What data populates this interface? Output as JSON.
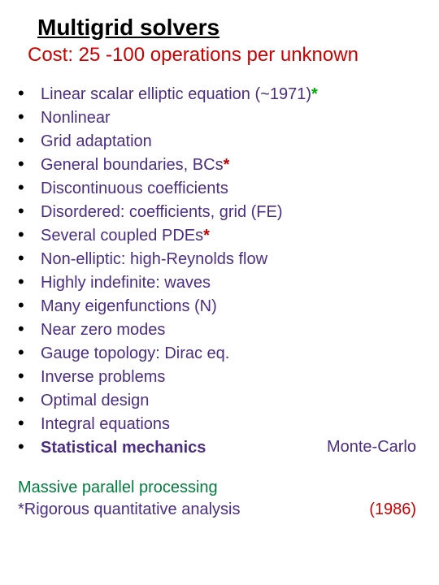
{
  "colors": {
    "title": "#000000",
    "subtitle": "#cc0000",
    "bullet": "#000000",
    "item": "#4b2e83",
    "suffix_green": "#00aa00",
    "suffix_red": "#cc0000",
    "trail": "#4b2e83",
    "footer1": "#007d3c",
    "footer2a": "#4b2e83",
    "footer2b": "#cc0000"
  },
  "title": "Multigrid solvers",
  "subtitle": "Cost: 25 -100 operations per unknown",
  "items": [
    {
      "text": "Linear scalar elliptic equation (~1971)",
      "suffix": "*",
      "suffix_color": "#00aa00",
      "bold": false
    },
    {
      "text": "Nonlinear",
      "bold": false
    },
    {
      "text": "Grid adaptation",
      "bold": false
    },
    {
      "text": "General boundaries, BCs",
      "suffix": "*",
      "suffix_color": "#cc0000",
      "bold": false
    },
    {
      "text": "Discontinuous coefficients",
      "bold": false
    },
    {
      "text": "Disordered: coefficients, grid (FE)",
      "bold": false
    },
    {
      "text": "Several coupled PDEs",
      "suffix": "*",
      "suffix_color": "#cc0000",
      "bold": false
    },
    {
      "text": "Non-elliptic: high-Reynolds flow",
      "bold": false
    },
    {
      "text": "Highly indefinite: waves",
      "bold": false
    },
    {
      "text": "Many eigenfunctions (N)",
      "bold": false
    },
    {
      "text": "Near zero modes",
      "bold": false
    },
    {
      "text": "Gauge topology: Dirac eq.",
      "bold": false
    },
    {
      "text": "Inverse problems",
      "bold": false
    },
    {
      "text": "Optimal design",
      "bold": false
    },
    {
      "text": "Integral equations",
      "bold": false
    },
    {
      "text": "Statistical mechanics",
      "bold": true,
      "trail": "Monte-Carlo"
    }
  ],
  "footer": {
    "line1": "Massive parallel processing",
    "line2a": "*Rigorous quantitative analysis",
    "line2b": "(1986)"
  },
  "typography": {
    "title_fontsize": 28,
    "subtitle_fontsize": 24,
    "body_fontsize": 20,
    "font_family": "Arial"
  }
}
